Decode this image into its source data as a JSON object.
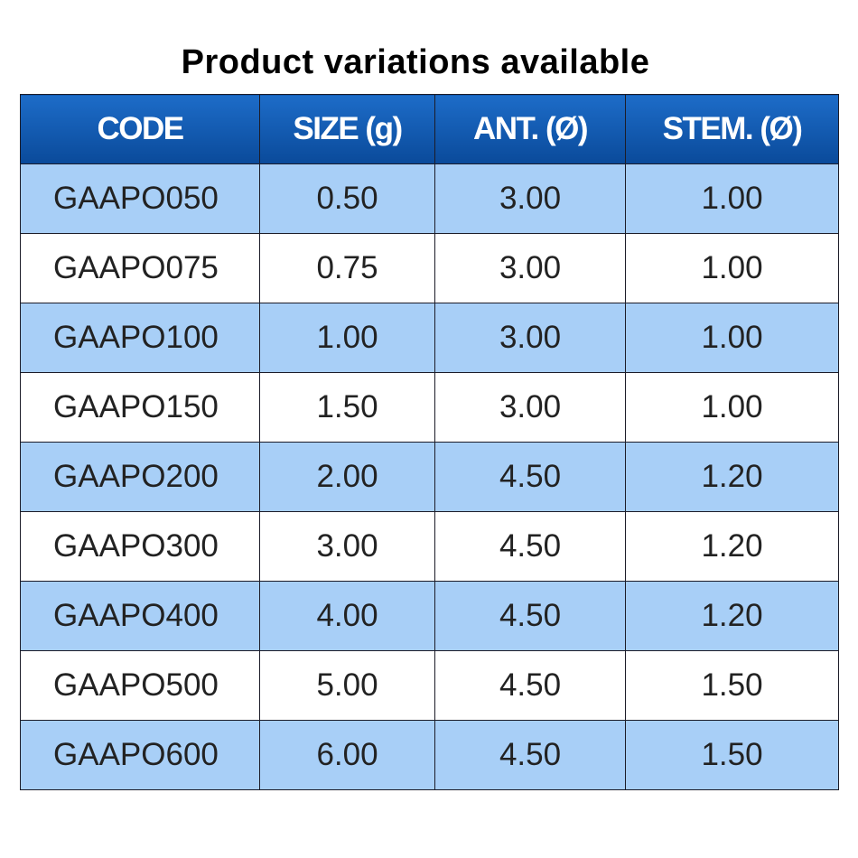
{
  "title": "Product variations available",
  "table": {
    "header": [
      "CODE",
      "SIZE (g)",
      "ANT. (Ø)",
      "STEM. (Ø)"
    ],
    "rows": [
      [
        "GAAPO050",
        "0.50",
        "3.00",
        "1.00"
      ],
      [
        "GAAPO075",
        "0.75",
        "3.00",
        "1.00"
      ],
      [
        "GAAPO100",
        "1.00",
        "3.00",
        "1.00"
      ],
      [
        "GAAPO150",
        "1.50",
        "3.00",
        "1.00"
      ],
      [
        "GAAPO200",
        "2.00",
        "4.50",
        "1.20"
      ],
      [
        "GAAPO300",
        "3.00",
        "4.50",
        "1.20"
      ],
      [
        "GAAPO400",
        "4.00",
        "4.50",
        "1.20"
      ],
      [
        "GAAPO500",
        "5.00",
        "4.50",
        "1.50"
      ],
      [
        "GAAPO600",
        "6.00",
        "4.50",
        "1.50"
      ]
    ]
  }
}
